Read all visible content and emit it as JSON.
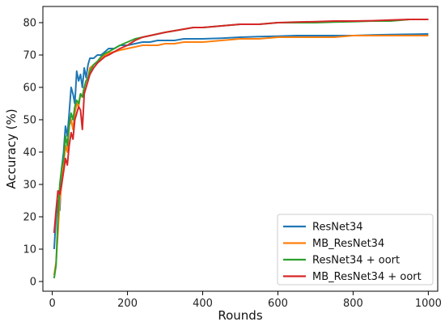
{
  "chart_data": {
    "type": "line",
    "title": "",
    "xlabel": "Rounds",
    "ylabel": "Accuracy (%)",
    "xlim": [
      -25,
      1025
    ],
    "ylim": [
      -3,
      85
    ],
    "xticks": [
      0,
      200,
      400,
      600,
      800,
      1000
    ],
    "yticks": [
      0,
      10,
      20,
      30,
      40,
      50,
      60,
      70,
      80
    ],
    "grid": false,
    "legend_position": "lower-right",
    "series": [
      {
        "name": "ResNet34",
        "color": "#1f77b4",
        "x": [
          5,
          10,
          15,
          20,
          25,
          30,
          35,
          40,
          45,
          50,
          55,
          60,
          65,
          70,
          75,
          80,
          85,
          90,
          95,
          100,
          110,
          120,
          130,
          140,
          150,
          165,
          180,
          200,
          220,
          240,
          260,
          280,
          300,
          325,
          350,
          375,
          400,
          450,
          500,
          550,
          600,
          650,
          700,
          750,
          800,
          850,
          900,
          950,
          1000
        ],
        "y": [
          10,
          20,
          25,
          22,
          35,
          40,
          48,
          45,
          52,
          60,
          58,
          55,
          65,
          62,
          64,
          60,
          66,
          63,
          67,
          69,
          69,
          70,
          70,
          71,
          72,
          72,
          73,
          73,
          73.5,
          74,
          74,
          74.5,
          74.5,
          74.5,
          75,
          75,
          75,
          75.2,
          75.5,
          75.7,
          75.8,
          76,
          76,
          76,
          76,
          76.2,
          76.3,
          76.4,
          76.5
        ]
      },
      {
        "name": "MB_ResNet34",
        "color": "#ff7f0e",
        "x": [
          5,
          10,
          15,
          20,
          25,
          30,
          35,
          40,
          45,
          50,
          55,
          60,
          65,
          70,
          75,
          80,
          85,
          90,
          95,
          100,
          110,
          120,
          130,
          140,
          150,
          165,
          180,
          200,
          220,
          240,
          260,
          280,
          300,
          325,
          350,
          375,
          400,
          450,
          500,
          550,
          600,
          650,
          700,
          750,
          800,
          850,
          900,
          950,
          1000
        ],
        "y": [
          2,
          6,
          15,
          25,
          30,
          36,
          42,
          40,
          48,
          50,
          47,
          52,
          55,
          54,
          58,
          57,
          60,
          62,
          63,
          66,
          67,
          68,
          69,
          70,
          70.5,
          71,
          71.5,
          72,
          72.5,
          73,
          73,
          73,
          73.5,
          73.5,
          74,
          74,
          74,
          74.5,
          75,
          75,
          75.5,
          75.5,
          75.5,
          75.5,
          76,
          76,
          76,
          76,
          76
        ]
      },
      {
        "name": "ResNet34 + oort",
        "color": "#2ca02c",
        "x": [
          5,
          10,
          15,
          20,
          25,
          30,
          35,
          40,
          45,
          50,
          55,
          60,
          65,
          70,
          75,
          80,
          85,
          90,
          95,
          100,
          110,
          120,
          130,
          140,
          150,
          165,
          180,
          200,
          220,
          240,
          260,
          280,
          300,
          325,
          350,
          375,
          400,
          450,
          500,
          550,
          600,
          650,
          700,
          750,
          800,
          850,
          900,
          950,
          1000
        ],
        "y": [
          1,
          5,
          20,
          30,
          35,
          38,
          45,
          42,
          48,
          52,
          50,
          54,
          56,
          55,
          58,
          57,
          60,
          62,
          63,
          65,
          67,
          68,
          69.5,
          70.5,
          71,
          72,
          73,
          74,
          75,
          75.5,
          76,
          76.5,
          77,
          77.5,
          78,
          78.5,
          78.5,
          79,
          79.5,
          79.5,
          80,
          80,
          80,
          80.2,
          80.3,
          80.5,
          80.5,
          81,
          81
        ]
      },
      {
        "name": "MB_ResNet34 + oort",
        "color": "#d62728",
        "x": [
          5,
          10,
          15,
          20,
          25,
          30,
          35,
          40,
          45,
          50,
          55,
          60,
          65,
          70,
          75,
          80,
          85,
          90,
          95,
          100,
          110,
          120,
          130,
          140,
          150,
          165,
          180,
          200,
          220,
          240,
          260,
          280,
          300,
          325,
          350,
          375,
          400,
          450,
          500,
          550,
          600,
          650,
          700,
          750,
          800,
          850,
          900,
          950,
          1000
        ],
        "y": [
          15,
          22,
          28,
          27,
          30,
          34,
          38,
          36,
          42,
          46,
          44,
          50,
          52,
          54,
          53,
          47,
          58,
          60,
          62,
          64,
          66,
          67.5,
          68.5,
          69.5,
          70,
          71,
          72,
          73,
          74.5,
          75.5,
          76,
          76.5,
          77,
          77.5,
          78,
          78.5,
          78.5,
          79,
          79.5,
          79.5,
          80,
          80.2,
          80.3,
          80.5,
          80.5,
          80.6,
          80.8,
          81,
          81
        ]
      }
    ]
  }
}
